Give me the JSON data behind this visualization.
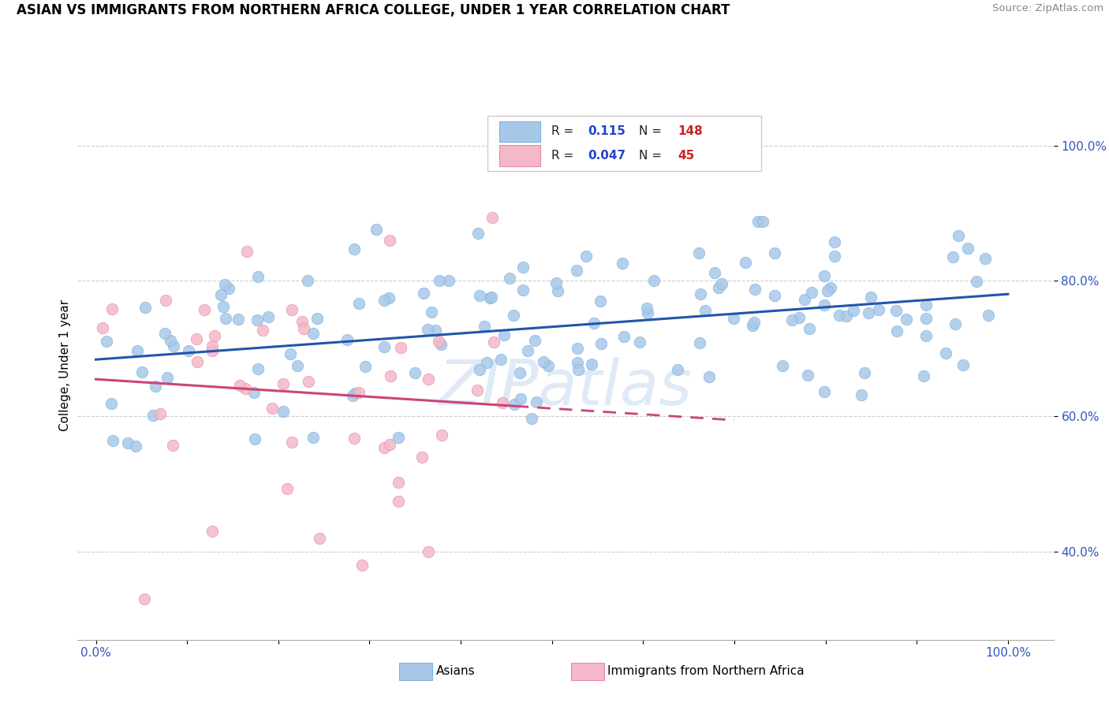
{
  "title": "ASIAN VS IMMIGRANTS FROM NORTHERN AFRICA COLLEGE, UNDER 1 YEAR CORRELATION CHART",
  "source": "Source: ZipAtlas.com",
  "ylabel": "College, Under 1 year",
  "asian_color": "#a8c8e8",
  "asian_edge_color": "#7ab3e0",
  "pink_color": "#f4b8c8",
  "pink_edge_color": "#e888a8",
  "asian_line_color": "#2255aa",
  "pink_line_color": "#cc4477",
  "legend_R1": "0.115",
  "legend_N1": "148",
  "legend_R2": "0.047",
  "legend_N2": "45",
  "watermark": "ZIPatlas",
  "xlim": [
    -0.02,
    1.05
  ],
  "ylim": [
    0.27,
    1.08
  ],
  "ytick_vals": [
    0.4,
    0.6,
    0.8,
    1.0
  ],
  "ytick_labels": [
    "40.0%",
    "60.0%",
    "80.0%",
    "100.0%"
  ],
  "xtick_labels_left": "0.0%",
  "xtick_labels_right": "100.0%"
}
